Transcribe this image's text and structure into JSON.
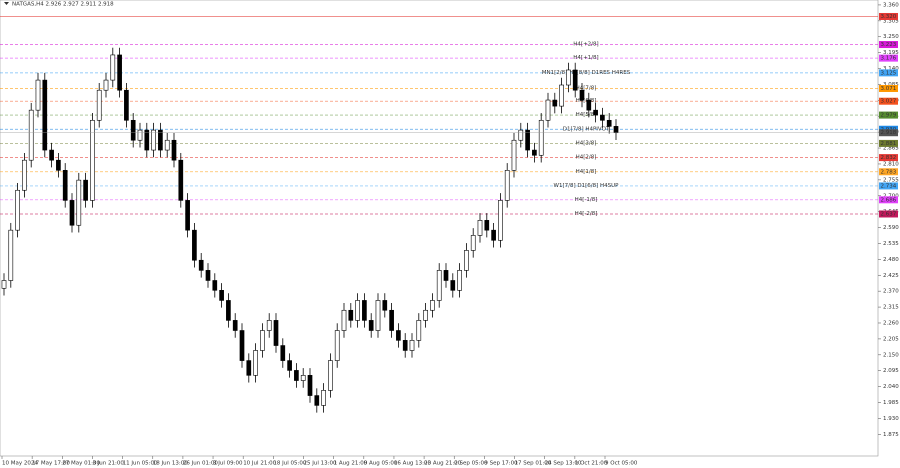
{
  "chart_data": {
    "type": "candlestick",
    "title": "NATGAS,H4  2.926 2.927 2.911 2.918",
    "x_labels": [
      "10 May 2024",
      "17 May 17:00",
      "27 May 01:00",
      "3 Jun 21:00",
      "11 Jun 05:00",
      "18 Jun 13:00",
      "26 Jun 01:00",
      "3 Jul 09:00",
      "10 Jul 21:00",
      "18 Jul 05:00",
      "25 Jul 13:00",
      "1 Aug 21:00",
      "9 Aug 05:00",
      "16 Aug 13:00",
      "23 Aug 21:00",
      "2 Sep 05:00",
      "9 Sep 17:00",
      "17 Sep 01:00",
      "24 Sep 13:00",
      "1 Oct 21:00",
      "9 Oct 05:00"
    ],
    "open": [
      2.38,
      2.407,
      2.581,
      2.719,
      2.823,
      2.996,
      3.1,
      2.858,
      2.823,
      2.788,
      2.684,
      2.598,
      2.754,
      2.684,
      2.961,
      3.065,
      3.1,
      3.187,
      3.065,
      2.961,
      2.892,
      2.927,
      2.858,
      2.927,
      2.858,
      2.892,
      2.823,
      2.684,
      2.581,
      2.477,
      2.442,
      2.407,
      2.373,
      2.338,
      2.269,
      2.234,
      2.13,
      2.079,
      2.165,
      2.234,
      2.269,
      2.182,
      2.13,
      2.096,
      2.061,
      2.079,
      2.009,
      1.975,
      2.027,
      2.13,
      2.234,
      2.304,
      2.269,
      2.338,
      2.269,
      2.234,
      2.338,
      2.304,
      2.234,
      2.2,
      2.165,
      2.2,
      2.269,
      2.304,
      2.338,
      2.442,
      2.407,
      2.373,
      2.442,
      2.511,
      2.563,
      2.615,
      2.581,
      2.546,
      2.684,
      2.788,
      2.892,
      2.927,
      2.858,
      2.84,
      2.961,
      3.031,
      3.01,
      3.083,
      3.135,
      3.065,
      3.031,
      2.996,
      2.979,
      2.961,
      2.94
    ],
    "high": [
      2.432,
      2.606,
      2.744,
      2.848,
      3.021,
      3.125,
      3.125,
      2.883,
      2.848,
      2.813,
      2.709,
      2.779,
      2.779,
      2.986,
      3.09,
      3.125,
      3.212,
      3.212,
      3.09,
      2.986,
      2.952,
      2.952,
      2.952,
      2.952,
      2.917,
      2.917,
      2.848,
      2.709,
      2.606,
      2.502,
      2.467,
      2.432,
      2.398,
      2.363,
      2.294,
      2.259,
      2.155,
      2.19,
      2.259,
      2.294,
      2.294,
      2.207,
      2.155,
      2.121,
      2.104,
      2.104,
      2.034,
      2.052,
      2.155,
      2.259,
      2.329,
      2.329,
      2.363,
      2.363,
      2.294,
      2.363,
      2.363,
      2.329,
      2.259,
      2.225,
      2.225,
      2.294,
      2.329,
      2.363,
      2.467,
      2.467,
      2.432,
      2.467,
      2.536,
      2.588,
      2.64,
      2.64,
      2.606,
      2.709,
      2.813,
      2.917,
      2.952,
      2.952,
      2.883,
      2.986,
      3.056,
      3.056,
      3.108,
      3.16,
      3.16,
      3.09,
      3.056,
      3.021,
      3.004,
      2.986,
      2.965
    ],
    "low": [
      2.355,
      2.382,
      2.556,
      2.694,
      2.798,
      2.971,
      2.833,
      2.798,
      2.763,
      2.659,
      2.573,
      2.573,
      2.659,
      2.659,
      2.936,
      3.04,
      3.075,
      3.04,
      2.936,
      2.867,
      2.867,
      2.833,
      2.833,
      2.833,
      2.833,
      2.798,
      2.659,
      2.556,
      2.452,
      2.417,
      2.382,
      2.348,
      2.313,
      2.244,
      2.209,
      2.105,
      2.054,
      2.054,
      2.14,
      2.209,
      2.157,
      2.105,
      2.071,
      2.036,
      2.036,
      1.984,
      1.95,
      1.95,
      2.002,
      2.105,
      2.209,
      2.244,
      2.244,
      2.244,
      2.209,
      2.209,
      2.279,
      2.209,
      2.175,
      2.14,
      2.14,
      2.175,
      2.244,
      2.279,
      2.313,
      2.382,
      2.348,
      2.348,
      2.417,
      2.486,
      2.538,
      2.556,
      2.521,
      2.521,
      2.659,
      2.763,
      2.867,
      2.833,
      2.815,
      2.815,
      2.936,
      2.985,
      2.985,
      3.058,
      3.04,
      3.006,
      2.971,
      2.954,
      2.936,
      2.915,
      2.893
    ],
    "close": [
      2.407,
      2.581,
      2.719,
      2.823,
      2.996,
      3.1,
      2.858,
      2.823,
      2.788,
      2.684,
      2.598,
      2.754,
      2.684,
      2.961,
      3.065,
      3.1,
      3.187,
      3.065,
      2.961,
      2.892,
      2.927,
      2.858,
      2.927,
      2.858,
      2.892,
      2.823,
      2.684,
      2.581,
      2.477,
      2.442,
      2.407,
      2.373,
      2.338,
      2.269,
      2.234,
      2.13,
      2.079,
      2.165,
      2.234,
      2.269,
      2.182,
      2.13,
      2.096,
      2.061,
      2.079,
      2.009,
      1.975,
      2.027,
      2.13,
      2.234,
      2.304,
      2.269,
      2.338,
      2.269,
      2.234,
      2.338,
      2.304,
      2.234,
      2.2,
      2.165,
      2.2,
      2.269,
      2.304,
      2.338,
      2.442,
      2.407,
      2.373,
      2.442,
      2.511,
      2.563,
      2.615,
      2.581,
      2.546,
      2.684,
      2.788,
      2.892,
      2.927,
      2.858,
      2.84,
      2.961,
      3.031,
      3.01,
      3.083,
      3.135,
      3.065,
      3.031,
      2.996,
      2.979,
      2.961,
      2.94,
      2.918
    ],
    "ylim": [
      1.8,
      3.377
    ],
    "yticks": [
      {
        "value": 1.875,
        "label": "1.875"
      },
      {
        "value": 1.93,
        "label": "1.930"
      },
      {
        "value": 1.985,
        "label": "1.985"
      },
      {
        "value": 2.04,
        "label": "2.040"
      },
      {
        "value": 2.095,
        "label": "2.095"
      },
      {
        "value": 2.15,
        "label": "2.150"
      },
      {
        "value": 2.205,
        "label": "2.205"
      },
      {
        "value": 2.26,
        "label": "2.260"
      },
      {
        "value": 2.315,
        "label": "2.315"
      },
      {
        "value": 2.37,
        "label": "2.370"
      },
      {
        "value": 2.425,
        "label": "2.425"
      },
      {
        "value": 2.48,
        "label": "2.480"
      },
      {
        "value": 2.535,
        "label": "2.535"
      },
      {
        "value": 2.59,
        "label": "2.590"
      },
      {
        "value": 2.645,
        "label": "2.645"
      },
      {
        "value": 2.7,
        "label": "2.700"
      },
      {
        "value": 2.755,
        "label": "2.755"
      },
      {
        "value": 2.81,
        "label": "2.810"
      },
      {
        "value": 2.865,
        "label": "2.865"
      },
      {
        "value": 2.92,
        "label": "2.920"
      },
      {
        "value": 2.975,
        "label": "2.975"
      },
      {
        "value": 3.03,
        "label": "3.030"
      },
      {
        "value": 3.085,
        "label": "3.085"
      },
      {
        "value": 3.14,
        "label": "3.140"
      },
      {
        "value": 3.195,
        "label": "3.195"
      },
      {
        "value": 3.25,
        "label": "3.250"
      },
      {
        "value": 3.305,
        "label": "3.305"
      },
      {
        "value": 3.36,
        "label": "3.360"
      }
    ],
    "grid": false,
    "levels": [
      {
        "value": 3.32,
        "label": "3.320",
        "color": "#e53935"
      },
      {
        "name": "H4[+2/8]",
        "value": 3.223,
        "label": "3.223",
        "color": "#d81bd8"
      },
      {
        "name": "H4[+1/8]",
        "value": 3.176,
        "label": "3.176",
        "color": "#e040fb"
      },
      {
        "name": "MN1[2/8] H4[8/8] D1RES H4RES",
        "value": 3.125,
        "label": "3.125",
        "color": "#42a5f5"
      },
      {
        "name": "H4[7/8]",
        "value": 3.071,
        "label": "3.071",
        "color": "#ff9800"
      },
      {
        "name": "H4[6/8]",
        "value": 3.027,
        "label": "3.027",
        "color": "#f4511e"
      },
      {
        "name": "H4[5/8]",
        "value": 2.979,
        "label": "2.979",
        "color": "#558b2f"
      },
      {
        "name": "D1[7/8] H4PIVOT",
        "value": 2.93,
        "label": "2.930",
        "color": "#1e88e5"
      },
      {
        "name": "H4[3/8]",
        "value": 2.881,
        "label": "2.881",
        "color": "#6d7a2e"
      },
      {
        "name": "H4[2/8]",
        "value": 2.832,
        "label": "2.832",
        "color": "#e53935"
      },
      {
        "name": "H4[1/8]",
        "value": 2.783,
        "label": "2.783",
        "color": "#ffa726"
      },
      {
        "name": "W1[7/8] D1[6/8] H4SUP",
        "value": 2.734,
        "label": "2.734",
        "color": "#42a5f5"
      },
      {
        "name": "H4[-1/8]",
        "value": 2.686,
        "label": "2.686",
        "color": "#e040fb"
      },
      {
        "name": "H4[-2/8]",
        "value": 2.637,
        "label": "2.637",
        "color": "#c2185b"
      }
    ],
    "current_price": {
      "value": 2.918,
      "label": "2.918",
      "color": "#555555"
    }
  }
}
